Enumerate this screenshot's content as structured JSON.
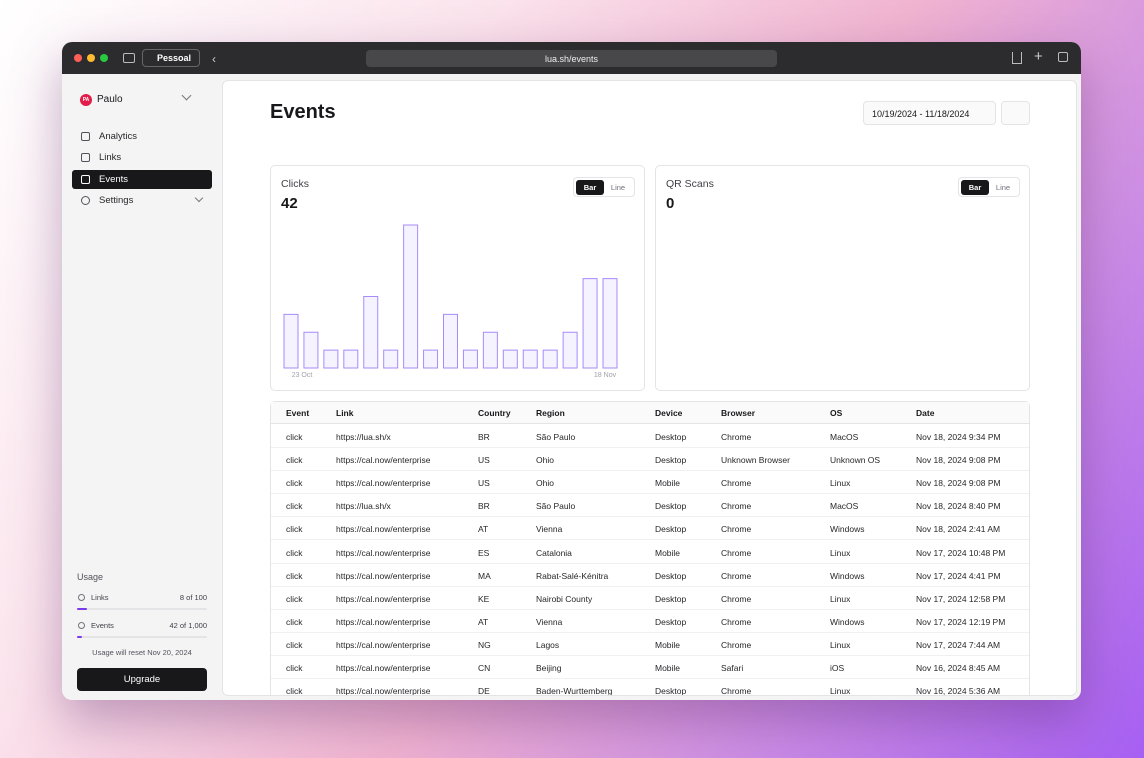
{
  "browser": {
    "profile": "Pessoal",
    "url": "lua.sh/events"
  },
  "sidebar": {
    "user": {
      "initials": "PA",
      "name": "Paulo"
    },
    "nav": [
      "Analytics",
      "Links",
      "Events",
      "Settings"
    ],
    "usage": {
      "title": "Usage",
      "items": [
        {
          "label": "Links",
          "count": "8 of 100"
        },
        {
          "label": "Events",
          "count": "42 of 1,000"
        }
      ],
      "note": "Usage will reset Nov 20, 2024",
      "button": "Upgrade"
    }
  },
  "header": {
    "title": "Events",
    "date_range": "10/19/2024 - 11/18/2024"
  },
  "chart_data": [
    {
      "type": "bar",
      "title": "Clicks",
      "total": 42,
      "toggle": [
        "Bar",
        "Line"
      ],
      "color": "#a78bfa",
      "categories": [
        "23 Oct",
        null,
        null,
        null,
        null,
        null,
        null,
        null,
        null,
        null,
        null,
        null,
        null,
        null,
        null,
        null,
        "18 Nov"
      ],
      "values": [
        3,
        2,
        1,
        1,
        4,
        1,
        8,
        1,
        3,
        1,
        2,
        1,
        1,
        1,
        2,
        5,
        5
      ]
    },
    {
      "type": "bar",
      "title": "QR Scans",
      "total": 0,
      "toggle": [
        "Bar",
        "Line"
      ],
      "color": "#a78bfa",
      "categories": [],
      "values": []
    }
  ],
  "table": {
    "columns": [
      "Event",
      "Link",
      "Country",
      "Region",
      "Device",
      "Browser",
      "OS",
      "Date"
    ],
    "rows": [
      [
        "click",
        "https://lua.sh/x",
        "BR",
        "São Paulo",
        "Desktop",
        "Chrome",
        "MacOS",
        "Nov 18, 2024 9:34 PM"
      ],
      [
        "click",
        "https://cal.now/enterprise",
        "US",
        "Ohio",
        "Desktop",
        "Unknown Browser",
        "Unknown OS",
        "Nov 18, 2024 9:08 PM"
      ],
      [
        "click",
        "https://cal.now/enterprise",
        "US",
        "Ohio",
        "Mobile",
        "Chrome",
        "Linux",
        "Nov 18, 2024 9:08 PM"
      ],
      [
        "click",
        "https://lua.sh/x",
        "BR",
        "São Paulo",
        "Desktop",
        "Chrome",
        "MacOS",
        "Nov 18, 2024 8:40 PM"
      ],
      [
        "click",
        "https://cal.now/enterprise",
        "AT",
        "Vienna",
        "Desktop",
        "Chrome",
        "Windows",
        "Nov 18, 2024 2:41 AM"
      ],
      [
        "click",
        "https://cal.now/enterprise",
        "ES",
        "Catalonia",
        "Mobile",
        "Chrome",
        "Linux",
        "Nov 17, 2024 10:48 PM"
      ],
      [
        "click",
        "https://cal.now/enterprise",
        "MA",
        "Rabat-Salé-Kénitra",
        "Desktop",
        "Chrome",
        "Windows",
        "Nov 17, 2024 4:41 PM"
      ],
      [
        "click",
        "https://cal.now/enterprise",
        "KE",
        "Nairobi County",
        "Desktop",
        "Chrome",
        "Linux",
        "Nov 17, 2024 12:58 PM"
      ],
      [
        "click",
        "https://cal.now/enterprise",
        "AT",
        "Vienna",
        "Desktop",
        "Chrome",
        "Windows",
        "Nov 17, 2024 12:19 PM"
      ],
      [
        "click",
        "https://cal.now/enterprise",
        "NG",
        "Lagos",
        "Mobile",
        "Chrome",
        "Linux",
        "Nov 17, 2024 7:44 AM"
      ],
      [
        "click",
        "https://cal.now/enterprise",
        "CN",
        "Beijing",
        "Mobile",
        "Safari",
        "iOS",
        "Nov 16, 2024 8:45 AM"
      ],
      [
        "click",
        "https://cal.now/enterprise",
        "DE",
        "Baden-Wurttemberg",
        "Desktop",
        "Chrome",
        "Linux",
        "Nov 16, 2024 5:36 AM"
      ]
    ]
  }
}
